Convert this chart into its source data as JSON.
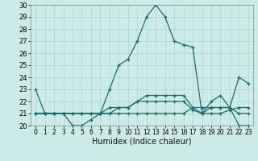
{
  "title": "",
  "xlabel": "Humidex (Indice chaleur)",
  "xlim": [
    -0.5,
    23.5
  ],
  "ylim": [
    20,
    30
  ],
  "xticks": [
    0,
    1,
    2,
    3,
    4,
    5,
    6,
    7,
    8,
    9,
    10,
    11,
    12,
    13,
    14,
    15,
    16,
    17,
    18,
    19,
    20,
    21,
    22,
    23
  ],
  "yticks": [
    20,
    21,
    22,
    23,
    24,
    25,
    26,
    27,
    28,
    29,
    30
  ],
  "background_color": "#cceae7",
  "grid_color": "#aed4d0",
  "line_color": "#1a6b6b",
  "series": [
    [
      23,
      21,
      21,
      21,
      20,
      20,
      20.5,
      21,
      23,
      25,
      25.5,
      27,
      29,
      30,
      29,
      27,
      26.7,
      26.5,
      21,
      21.5,
      21.5,
      21.5,
      24,
      23.5
    ],
    [
      21,
      21,
      21,
      21,
      21,
      21,
      21,
      21,
      21,
      21,
      21,
      21,
      21,
      21,
      21,
      21,
      21,
      21.5,
      21.5,
      21.5,
      21.5,
      21.5,
      21,
      21
    ],
    [
      21,
      21,
      21,
      21,
      21,
      21,
      21,
      21,
      21,
      21.5,
      21.5,
      22,
      22,
      22,
      22,
      22,
      22,
      21.3,
      21,
      22,
      22.5,
      21.5,
      20,
      20
    ],
    [
      21,
      21,
      21,
      21,
      21,
      21,
      21,
      21,
      21.5,
      21.5,
      21.5,
      22,
      22.5,
      22.5,
      22.5,
      22.5,
      22.5,
      21.5,
      21,
      21,
      21,
      21.3,
      21.5,
      21.5
    ]
  ]
}
